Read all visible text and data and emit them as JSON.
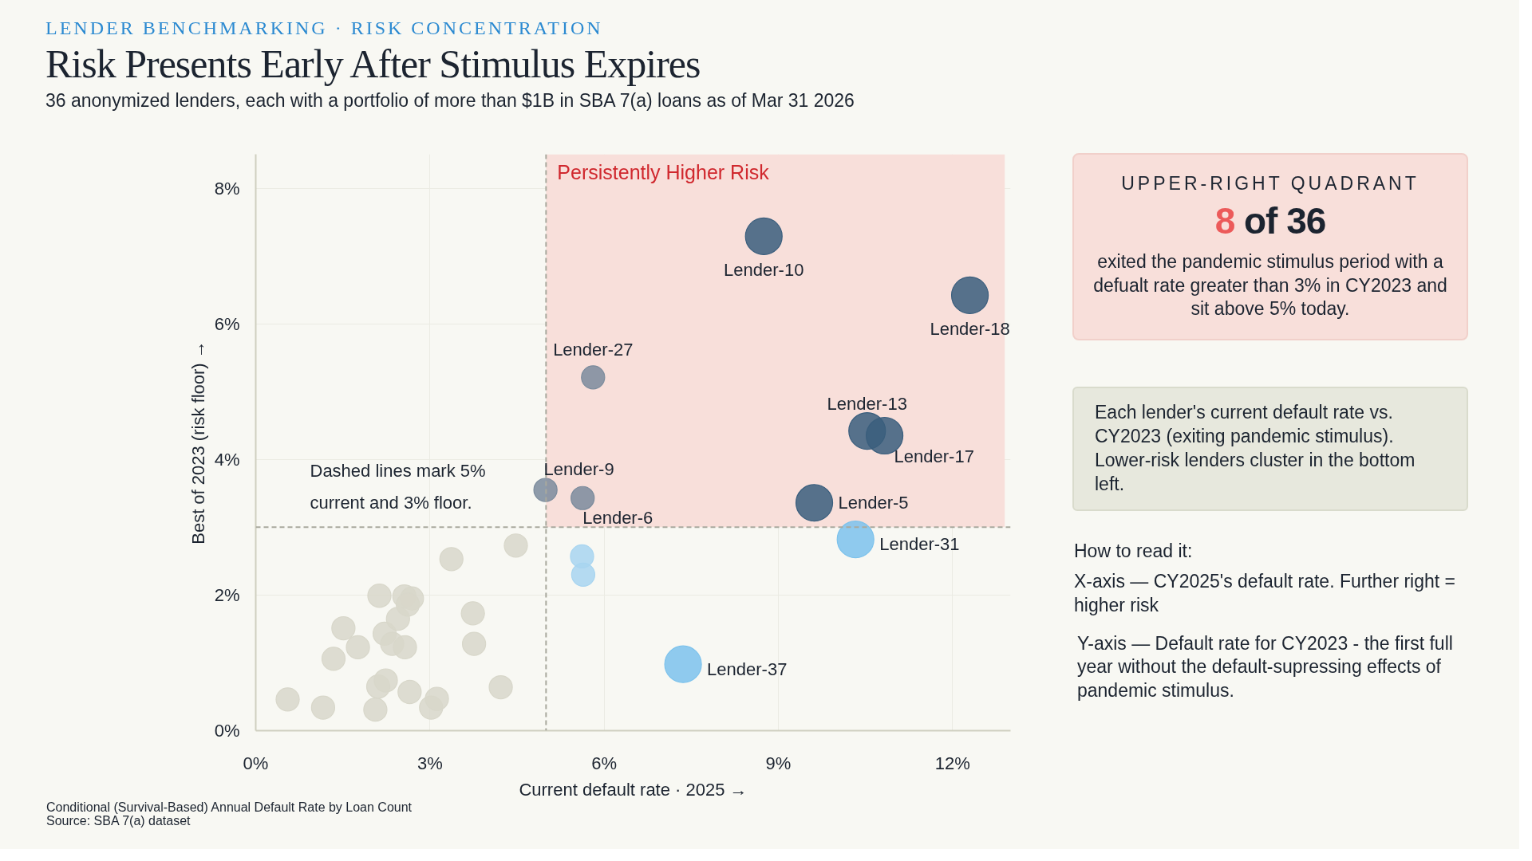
{
  "chart_data": {
    "type": "bubble",
    "title": "Risk Presents Early After Stimulus Expires",
    "subtitle": "36 anonymized lenders, each with a portfolio of more than $1B in SBA 7(a) loans as of Mar 31 2026",
    "xlabel": "Current default rate · 2025 →",
    "ylabel": "Best of 2023 (risk floor) →",
    "xlim": [
      0,
      13
    ],
    "ylim": [
      0,
      8.5
    ],
    "xticks": [
      {
        "value": 0,
        "label": "0%"
      },
      {
        "value": 3,
        "label": "3%"
      },
      {
        "value": 6,
        "label": "6%"
      },
      {
        "value": 9,
        "label": "9%"
      },
      {
        "value": 12,
        "label": "12%"
      }
    ],
    "yticks": [
      {
        "value": 0,
        "label": "0%"
      },
      {
        "value": 2,
        "label": "2%"
      },
      {
        "value": 4,
        "label": "4%"
      },
      {
        "value": 6,
        "label": "6%"
      },
      {
        "value": 8,
        "label": "8%"
      }
    ],
    "grid": true,
    "marker": "circle",
    "series": [
      {
        "color": "#d8d7ca",
        "x": [
          0.55,
          1.16,
          1.34,
          1.51,
          1.76,
          2.13,
          2.06,
          2.11,
          2.24,
          2.22,
          2.35,
          2.45,
          2.56,
          2.69,
          2.62,
          2.57,
          2.65,
          3.02,
          3.12,
          3.37,
          3.74,
          3.76,
          4.22,
          4.48
        ],
        "values": [
          0.46,
          0.34,
          1.06,
          1.51,
          1.23,
          1.99,
          0.31,
          0.65,
          0.74,
          1.43,
          1.28,
          1.65,
          1.98,
          1.95,
          1.86,
          1.23,
          0.57,
          0.34,
          0.47,
          2.53,
          1.73,
          1.28,
          0.64,
          2.73
        ],
        "sizes": [
          0.4,
          0.4,
          0.4,
          0.4,
          0.4,
          0.4,
          0.4,
          0.4,
          0.4,
          0.4,
          0.4,
          0.4,
          0.4,
          0.4,
          0.4,
          0.4,
          0.4,
          0.4,
          0.4,
          0.4,
          0.4,
          0.4,
          0.4,
          0.4
        ]
      },
      {
        "color": "#7b8b9c",
        "x": [
          5.81,
          4.99,
          5.63
        ],
        "values": [
          5.21,
          3.55,
          3.43
        ],
        "sizes": [
          0.4,
          0.4,
          0.4
        ]
      },
      {
        "color": "#3a5e7d",
        "x": [
          8.75,
          12.3,
          10.53,
          10.83,
          9.62
        ],
        "values": [
          7.29,
          6.42,
          4.42,
          4.35,
          3.36
        ],
        "sizes": [
          1,
          1,
          1,
          1,
          1
        ]
      },
      {
        "color": "#7cc2ec",
        "x": [
          10.33,
          7.36
        ],
        "values": [
          2.82,
          0.98
        ],
        "sizes": [
          1,
          1
        ]
      },
      {
        "color": "#a8d5f0",
        "x": [
          5.62,
          5.64
        ],
        "values": [
          2.57,
          2.3
        ],
        "sizes": [
          0.4,
          0.4
        ]
      }
    ],
    "ref_lines": [
      {
        "axis": "x",
        "value": 5,
        "line_style": "dashed",
        "color": "#a9a99e"
      },
      {
        "axis": "y",
        "value": 3,
        "line_style": "dashed",
        "color": "#a9a99e"
      }
    ],
    "bands": [
      {
        "axis": "x",
        "from": 5,
        "to": 12.9,
        "label": "Persistently Higher Risk",
        "color": "#f8dfda"
      }
    ],
    "annotations": [
      "LENDER BENCHMARKING · RISK CONCENTRATION",
      "UPPER-RIGHT QUADRANT",
      "8 of 36",
      "exited the pandemic stimulus period with a defualt rate greater than 3% in CY2023 and sit above 5% today.",
      "Each lender's current default rate vs. CY2023 (exiting pandemic stimulus). Lower-risk lenders cluster in the bottom left.",
      "How to read it:",
      "X-axis — CY2025's default rate. Further right = higher risk",
      "Y-axis — Default rate for CY2023 - the first full year without the default-supressing effects of pandemic stimulus.",
      "Dashed lines mark 5% current and 3% floor.",
      "Conditional (Survival-Based) Annual Default Rate by Loan Count",
      "Source: SBA 7(a) dataset",
      {
        "text": "Lender-10",
        "x": 8.75,
        "y": 7.29
      },
      {
        "text": "Lender-18",
        "x": 12.3,
        "y": 6.42
      },
      {
        "text": "Lender-27",
        "x": 5.81,
        "y": 5.21
      },
      {
        "text": "Lender-13",
        "x": 10.53,
        "y": 4.42
      },
      {
        "text": "Lender-17",
        "x": 10.83,
        "y": 4.35
      },
      {
        "text": "Lender-9",
        "x": 4.99,
        "y": 3.55
      },
      {
        "text": "Lender-6",
        "x": 5.63,
        "y": 3.43
      },
      {
        "text": "Lender-5",
        "x": 9.62,
        "y": 3.36
      },
      {
        "text": "Lender-31",
        "x": 10.33,
        "y": 2.82
      },
      {
        "text": "Lender-37",
        "x": 7.36,
        "y": 0.98
      }
    ]
  }
}
